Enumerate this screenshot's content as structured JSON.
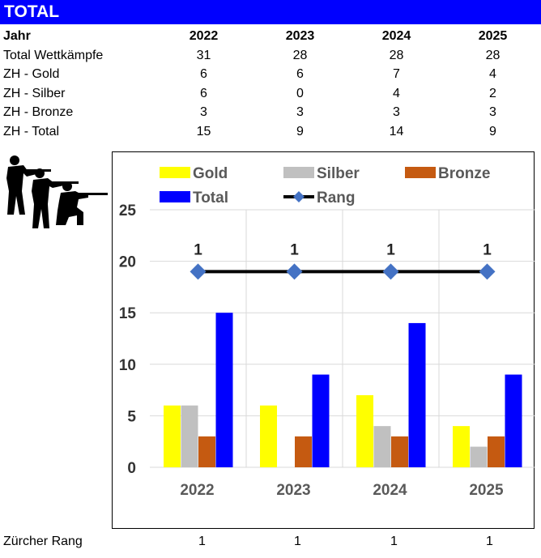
{
  "banner": {
    "title": "TOTAL"
  },
  "table": {
    "header": {
      "label": "Jahr",
      "years": [
        "2022",
        "2023",
        "2024",
        "2025"
      ]
    },
    "rows": [
      {
        "label": "Total Wettkämpfe",
        "values": [
          "31",
          "28",
          "28",
          "28"
        ]
      },
      {
        "label": "ZH - Gold",
        "values": [
          "6",
          "6",
          "7",
          "4"
        ]
      },
      {
        "label": "ZH - Silber",
        "values": [
          "6",
          "0",
          "4",
          "2"
        ]
      },
      {
        "label": "ZH - Bronze",
        "values": [
          "3",
          "3",
          "3",
          "3"
        ]
      },
      {
        "label": "ZH - Total",
        "values": [
          "15",
          "9",
          "14",
          "9"
        ]
      }
    ]
  },
  "footer": {
    "label": "Zürcher Rang",
    "values": [
      "1",
      "1",
      "1",
      "1"
    ]
  },
  "colors": {
    "banner": "#0000ff",
    "gold": "#ffff00",
    "silber": "#c0c0c0",
    "bronze": "#c55a11",
    "total": "#0000ff",
    "rang_line": "#000000",
    "rang_marker": "#4472c4"
  },
  "chart_data": {
    "type": "bar",
    "categories": [
      "2022",
      "2023",
      "2024",
      "2025"
    ],
    "series": [
      {
        "name": "Gold",
        "values": [
          6,
          6,
          7,
          4
        ]
      },
      {
        "name": "Silber",
        "values": [
          6,
          0,
          4,
          2
        ]
      },
      {
        "name": "Bronze",
        "values": [
          3,
          3,
          3,
          3
        ]
      },
      {
        "name": "Total",
        "values": [
          15,
          9,
          14,
          9
        ]
      }
    ],
    "line_series": {
      "name": "Rang",
      "values": [
        1,
        1,
        1,
        1
      ],
      "plotted_at": 19
    },
    "ylim": [
      0,
      25
    ],
    "yticks": [
      0,
      5,
      10,
      15,
      20,
      25
    ],
    "grid": true,
    "legend": "top"
  }
}
